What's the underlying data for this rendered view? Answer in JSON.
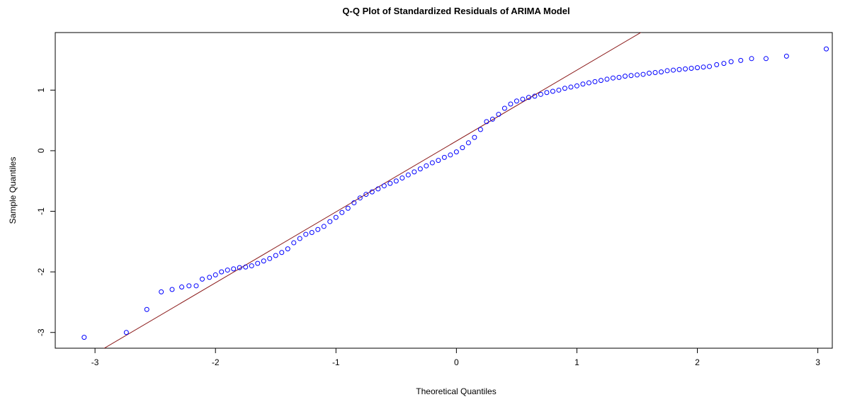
{
  "chart_data": {
    "type": "scatter",
    "title": "Q-Q Plot of Standardized Residuals of ARIMA Model",
    "x_label": "Theoretical Quantiles",
    "y_label": "Sample Quantiles",
    "xlim": [
      -3.33,
      3.12
    ],
    "ylim": [
      -3.26,
      1.95
    ],
    "xticks": [
      -3,
      -2,
      -1,
      0,
      1,
      2,
      3
    ],
    "yticks": [
      -3,
      -2,
      -1,
      0,
      1
    ],
    "point_color": "#0000ff",
    "x": [
      -3.09,
      -2.74,
      -2.57,
      -2.45,
      -2.36,
      -2.28,
      -2.22,
      -2.16,
      -2.11,
      -2.05,
      -2.0,
      -1.95,
      -1.9,
      -1.85,
      -1.8,
      -1.75,
      -1.7,
      -1.65,
      -1.6,
      -1.55,
      -1.5,
      -1.45,
      -1.4,
      -1.35,
      -1.3,
      -1.25,
      -1.2,
      -1.15,
      -1.1,
      -1.05,
      -1.0,
      -0.95,
      -0.9,
      -0.85,
      -0.8,
      -0.75,
      -0.7,
      -0.65,
      -0.6,
      -0.55,
      -0.5,
      -0.45,
      -0.4,
      -0.35,
      -0.3,
      -0.25,
      -0.2,
      -0.15,
      -0.1,
      -0.05,
      0.0,
      0.05,
      0.1,
      0.15,
      0.2,
      0.25,
      0.3,
      0.35,
      0.4,
      0.45,
      0.5,
      0.55,
      0.6,
      0.65,
      0.7,
      0.75,
      0.8,
      0.85,
      0.9,
      0.95,
      1.0,
      1.05,
      1.1,
      1.15,
      1.2,
      1.25,
      1.3,
      1.35,
      1.4,
      1.45,
      1.5,
      1.55,
      1.6,
      1.65,
      1.7,
      1.75,
      1.8,
      1.85,
      1.9,
      1.95,
      2.0,
      2.05,
      2.1,
      2.16,
      2.22,
      2.28,
      2.36,
      2.45,
      2.57,
      2.74,
      3.07
    ],
    "values": [
      -3.08,
      -3.0,
      -2.62,
      -2.33,
      -2.29,
      -2.25,
      -2.23,
      -2.23,
      -2.12,
      -2.09,
      -2.05,
      -2.0,
      -1.97,
      -1.95,
      -1.93,
      -1.92,
      -1.9,
      -1.86,
      -1.82,
      -1.78,
      -1.73,
      -1.68,
      -1.62,
      -1.52,
      -1.45,
      -1.38,
      -1.35,
      -1.3,
      -1.25,
      -1.17,
      -1.1,
      -1.02,
      -0.95,
      -0.86,
      -0.78,
      -0.72,
      -0.68,
      -0.63,
      -0.58,
      -0.54,
      -0.5,
      -0.45,
      -0.4,
      -0.35,
      -0.3,
      -0.25,
      -0.2,
      -0.16,
      -0.11,
      -0.07,
      -0.02,
      0.05,
      0.13,
      0.22,
      0.35,
      0.48,
      0.52,
      0.6,
      0.7,
      0.77,
      0.82,
      0.85,
      0.88,
      0.9,
      0.93,
      0.96,
      0.98,
      1.0,
      1.03,
      1.05,
      1.07,
      1.1,
      1.12,
      1.14,
      1.16,
      1.18,
      1.2,
      1.21,
      1.23,
      1.24,
      1.25,
      1.26,
      1.28,
      1.29,
      1.3,
      1.32,
      1.33,
      1.34,
      1.35,
      1.36,
      1.37,
      1.38,
      1.39,
      1.42,
      1.44,
      1.47,
      1.49,
      1.52,
      1.52,
      1.56,
      1.68
    ],
    "reference_line": {
      "intercept": 0.16,
      "slope": 1.17,
      "color": "#8b1a1a"
    }
  }
}
